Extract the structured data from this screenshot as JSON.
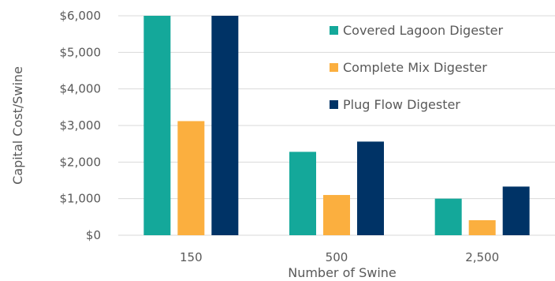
{
  "chart_data": {
    "type": "bar",
    "title": "",
    "xlabel": "Number of Swine",
    "ylabel": "Capital Cost/Swine",
    "categories": [
      "150",
      "500",
      "2,500"
    ],
    "series": [
      {
        "name": "Covered Lagoon Digester",
        "values": [
          6000,
          2280,
          1000
        ]
      },
      {
        "name": "Complete Mix Digester",
        "values": [
          3120,
          1100,
          410
        ]
      },
      {
        "name": "Plug Flow Digester",
        "values": [
          6000,
          2560,
          1330
        ]
      }
    ],
    "ylim": [
      0,
      6000
    ],
    "yticks": [
      0,
      1000,
      2000,
      3000,
      4000,
      5000,
      6000
    ],
    "ytick_labels": [
      "$0",
      "$1,000",
      "$2,000",
      "$3,000",
      "$4,000",
      "$5,000",
      "$6,000"
    ],
    "grid": true,
    "legend_position": "top-right"
  },
  "colors": {
    "series": [
      "#14a89a",
      "#fbaf3f",
      "#003366"
    ],
    "grid": "#d9d9d9",
    "text": "#595959"
  }
}
